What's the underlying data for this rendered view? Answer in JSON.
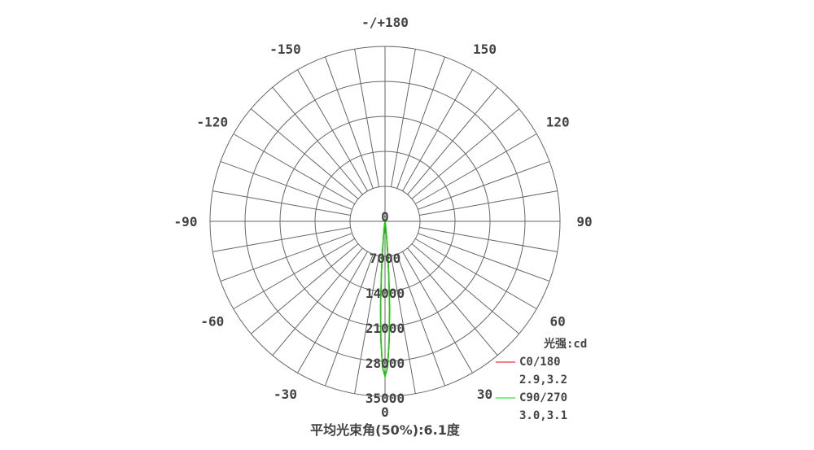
{
  "chart_data": {
    "type": "polar",
    "title": "平均光束角(50%):6.1度",
    "unit_label": "光强:cd",
    "angle_tick_labels": [
      "0",
      "30",
      "60",
      "90",
      "120",
      "150",
      "-/+180",
      "-150",
      "-120",
      "-90",
      "-60",
      "-30"
    ],
    "angle_ticks": [
      0,
      30,
      60,
      90,
      120,
      150,
      180,
      -150,
      -120,
      -90,
      -60,
      -30
    ],
    "radial_tick_labels": [
      "0",
      "7000",
      "14000",
      "21000",
      "28000",
      "35000"
    ],
    "radial_ticks": [
      0,
      7000,
      14000,
      21000,
      28000,
      35000
    ],
    "rlim": [
      0,
      35000
    ],
    "grid": true,
    "angle_grid_step_deg": 10,
    "legend_position": "bottom-right",
    "series": [
      {
        "name": "C0/180",
        "beam": "2.9,3.2",
        "color": "#e00000",
        "angles": [
          -10,
          -8,
          -6,
          -5,
          -4,
          -3,
          -2,
          -1,
          0,
          1,
          2,
          3,
          4,
          5,
          6,
          8,
          10
        ],
        "values": [
          100,
          600,
          2600,
          5400,
          10400,
          16800,
          23600,
          29100,
          31000,
          29200,
          23900,
          17500,
          11000,
          5900,
          2900,
          700,
          120
        ]
      },
      {
        "name": "C90/270",
        "beam": "3.0,3.1",
        "color": "#00e000",
        "angles": [
          -10,
          -8,
          -6,
          -5,
          -4,
          -3,
          -2,
          -1,
          0,
          1,
          2,
          3,
          4,
          5,
          6,
          8,
          10
        ],
        "values": [
          110,
          650,
          2700,
          5600,
          10700,
          17100,
          23800,
          29200,
          31000,
          29150,
          23700,
          17300,
          10800,
          5700,
          2800,
          680,
          110
        ]
      }
    ]
  }
}
